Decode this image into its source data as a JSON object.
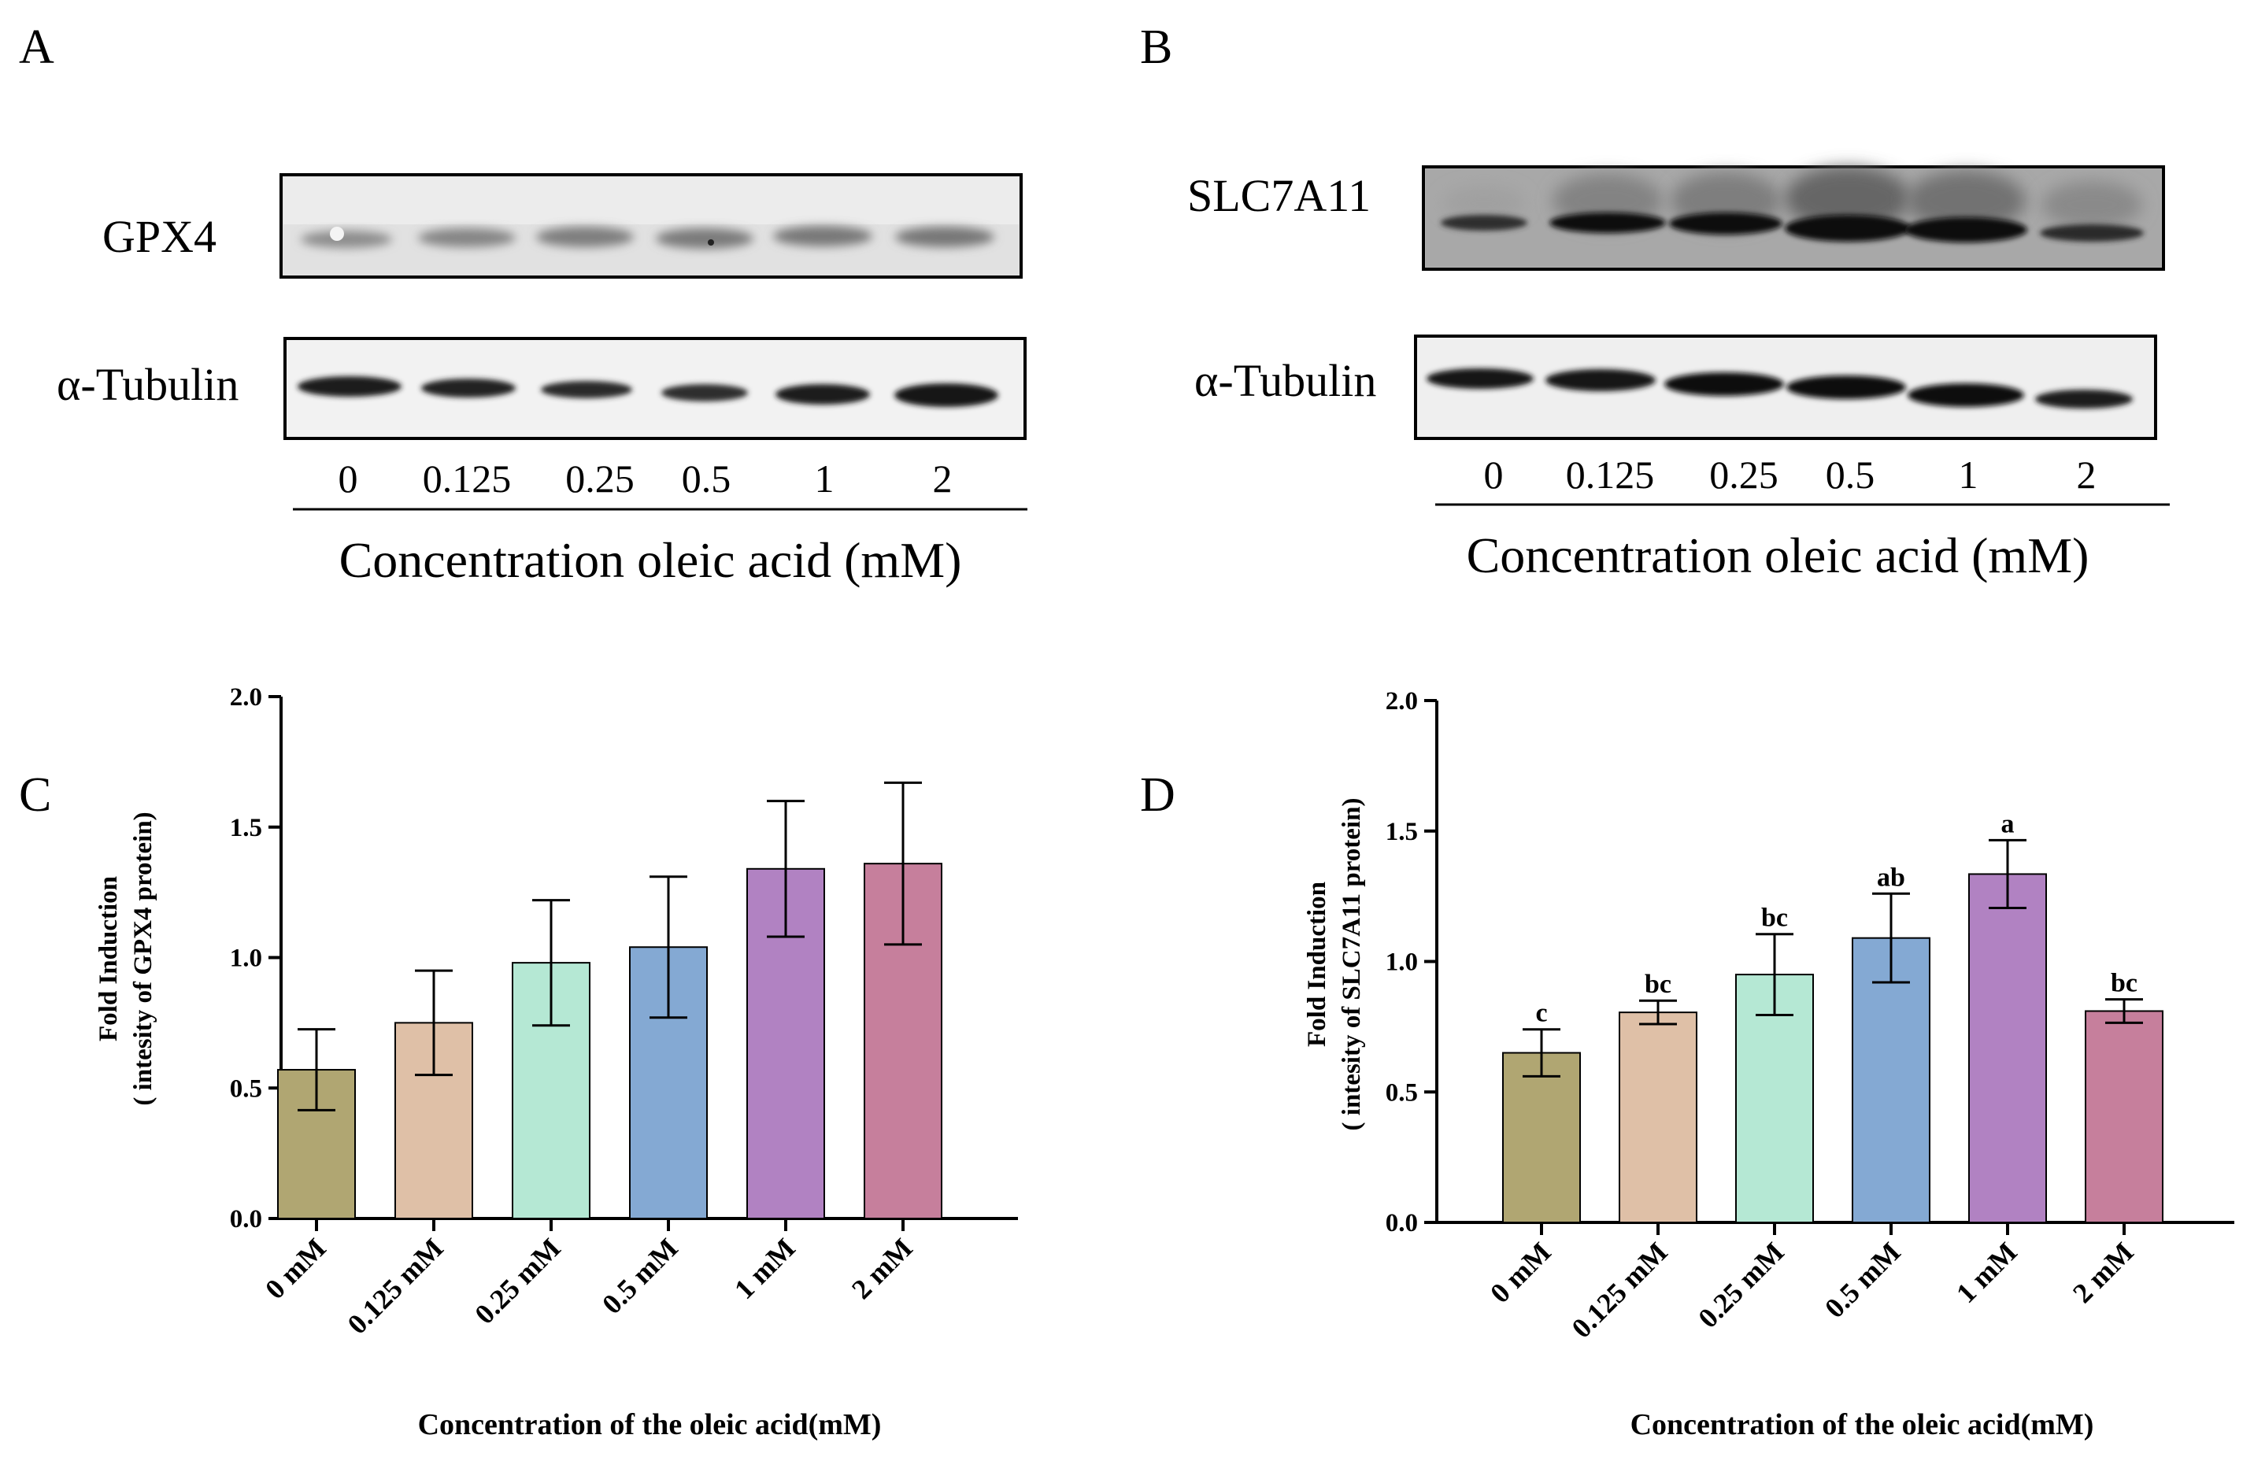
{
  "panels": {
    "a": {
      "letter": "A",
      "target_label": "GPX4",
      "loading_label": "α-Tubulin",
      "lanes": [
        "0",
        "0.125",
        "0.25",
        "0.5",
        "1",
        "2"
      ],
      "concentration_label": "Concentration oleic acid (mM)"
    },
    "b": {
      "letter": "B",
      "target_label": "SLC7A11",
      "loading_label": "α-Tubulin",
      "lanes": [
        "0",
        "0.125",
        "0.25",
        "0.5",
        "1",
        "2"
      ],
      "concentration_label": "Concentration oleic acid (mM)"
    }
  },
  "chart_data": [
    {
      "id": "C",
      "letter": "C",
      "type": "bar",
      "categories": [
        "0 mM",
        "0.125 mM",
        "0.25 mM",
        "0.5 mM",
        "1 mM",
        "2 mM"
      ],
      "values": [
        0.57,
        0.75,
        0.98,
        1.04,
        1.34,
        1.36
      ],
      "errors": [
        0.155,
        0.2,
        0.24,
        0.27,
        0.26,
        0.31
      ],
      "labels": [],
      "colors": [
        "#b0a672",
        "#dfc0a7",
        "#b5e8d4",
        "#84a9d3",
        "#b182c2",
        "#c67f9c"
      ],
      "ylabel_line1": "Fold Induction",
      "ylabel_line2": "( intesity of GPX4 protein)",
      "xlabel": "Concentration of the oleic acid(mM)",
      "ylim": [
        0,
        2.0
      ],
      "yticks": [
        "0.0",
        "0.5",
        "1.0",
        "1.5",
        "2.0"
      ],
      "grid": false
    },
    {
      "id": "D",
      "letter": "D",
      "type": "bar",
      "categories": [
        "0 mM",
        "0.125 mM",
        "0.25 mM",
        "0.5 mM",
        "1 mM",
        "2 mM"
      ],
      "values": [
        0.65,
        0.805,
        0.95,
        1.09,
        1.335,
        0.81
      ],
      "errors": [
        0.09,
        0.045,
        0.155,
        0.17,
        0.13,
        0.045
      ],
      "labels": [
        "c",
        "bc",
        "bc",
        "ab",
        "a",
        "bc"
      ],
      "colors": [
        "#b0a672",
        "#dfc0a7",
        "#b5e8d4",
        "#84a9d3",
        "#b182c2",
        "#c67f9c"
      ],
      "ylabel_line1": "Fold Induction",
      "ylabel_line2": "( intesity of SLC7A11 protein)",
      "xlabel": "Concentration of the oleic acid(mM)",
      "ylim": [
        0,
        2.0
      ],
      "yticks": [
        "0.0",
        "0.5",
        "1.0",
        "1.5",
        "2.0"
      ],
      "grid": false
    }
  ]
}
